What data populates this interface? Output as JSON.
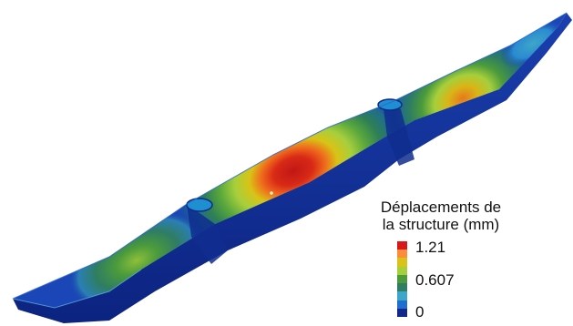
{
  "legend": {
    "title_line1": "Déplacements de",
    "title_line2": "la structure (mm)",
    "ticks": {
      "max": "1.21",
      "mid": "0.607",
      "min": "0"
    },
    "colors": [
      "#d7191c",
      "#fd8d3c",
      "#d9c316",
      "#a6cf3c",
      "#4b9b3c",
      "#2f7d62",
      "#3ea6c8",
      "#1f6fd0",
      "#13288a"
    ]
  },
  "colors": {
    "background": "#ffffff",
    "beam_base": "#1a3fae",
    "beam_shadow": "#0c2380",
    "beam_edge": "#2a63d6"
  }
}
